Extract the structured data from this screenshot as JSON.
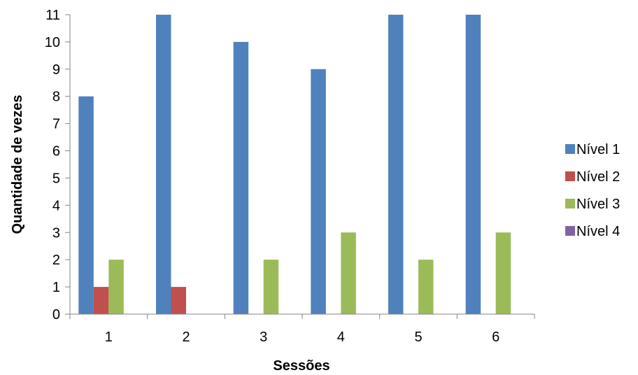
{
  "chart_data": {
    "type": "bar",
    "title": "",
    "xlabel": "Sessões",
    "ylabel": "Quantidade de vezes",
    "categories": [
      "1",
      "2",
      "3",
      "4",
      "5",
      "6"
    ],
    "ylim": [
      0,
      11
    ],
    "yticks": [
      "0",
      "1",
      "2",
      "3",
      "4",
      "5",
      "6",
      "7",
      "8",
      "9",
      "10",
      "11"
    ],
    "grid": false,
    "legend_position": "right",
    "series": [
      {
        "name": "Nível 1",
        "color": "#4F81BD",
        "values": [
          8,
          11,
          10,
          9,
          11,
          11
        ]
      },
      {
        "name": "Nível 2",
        "color": "#C0504D",
        "values": [
          1,
          1,
          0,
          0,
          0,
          0
        ]
      },
      {
        "name": "Nível 3",
        "color": "#9BBB59",
        "values": [
          2,
          0,
          2,
          3,
          2,
          3
        ]
      },
      {
        "name": "Nível 4",
        "color": "#8064A2",
        "values": [
          0,
          0,
          0,
          0,
          0,
          0
        ]
      }
    ]
  }
}
